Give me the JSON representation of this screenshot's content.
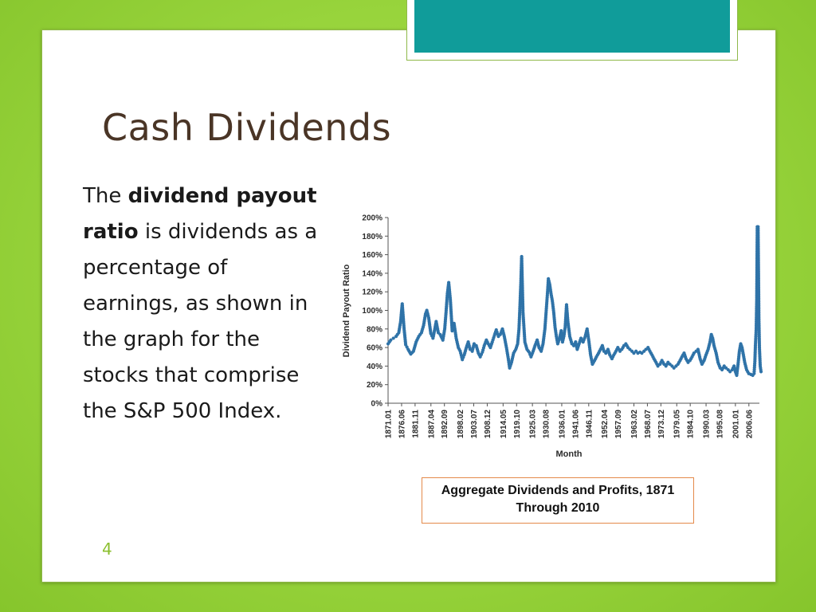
{
  "slide": {
    "title": "Cash Dividends",
    "body_pre": "The ",
    "body_bold": "dividend payout ratio",
    "body_post": " is dividends as a percentage of earnings, as shown in the graph for the stocks that comprise the S&P 500 Index.",
    "caption": "Aggregate Dividends and Profits, 1871 Through 2010",
    "page_number": "4"
  },
  "colors": {
    "accent_teal": "#109c9a",
    "background_green": "#98d43c",
    "series_blue": "#2f73a8",
    "title_brown": "#4a3526"
  },
  "chart_data": {
    "type": "scatter",
    "xlabel": "Month",
    "ylabel": "Dividend Payout Ratio",
    "ylim": [
      0,
      200
    ],
    "x_range": [
      1871,
      2010
    ],
    "y_ticks": [
      "0%",
      "20%",
      "40%",
      "60%",
      "80%",
      "100%",
      "120%",
      "140%",
      "160%",
      "180%",
      "200%"
    ],
    "x_tick_labels": [
      "1871.01",
      "1876.06",
      "1881.11",
      "1887.04",
      "1892.09",
      "1898.02",
      "1903.07",
      "1908.12",
      "1914.05",
      "1919.10",
      "1925.03",
      "1930.08",
      "1936.01",
      "1941.06",
      "1946.11",
      "1952.04",
      "1957.09",
      "1963.02",
      "1968.07",
      "1973.12",
      "1979.05",
      "1984.10",
      "1990.03",
      "1995.08",
      "2001.01",
      "2006.06"
    ],
    "series": [
      {
        "points": [
          [
            1871.0,
            64
          ],
          [
            1872.0,
            68
          ],
          [
            1873.0,
            70
          ],
          [
            1874.0,
            72
          ],
          [
            1875.0,
            76
          ],
          [
            1875.7,
            88
          ],
          [
            1876.3,
            107
          ],
          [
            1877.0,
            80
          ],
          [
            1877.6,
            63
          ],
          [
            1878.5,
            58
          ],
          [
            1879.5,
            53
          ],
          [
            1880.5,
            56
          ],
          [
            1881.5,
            66
          ],
          [
            1882.5,
            72
          ],
          [
            1883.5,
            76
          ],
          [
            1884.3,
            84
          ],
          [
            1885.0,
            96
          ],
          [
            1885.5,
            100
          ],
          [
            1886.2,
            92
          ],
          [
            1887.0,
            75
          ],
          [
            1887.8,
            70
          ],
          [
            1888.5,
            80
          ],
          [
            1889.0,
            88
          ],
          [
            1889.8,
            76
          ],
          [
            1890.5,
            74
          ],
          [
            1891.5,
            68
          ],
          [
            1892.2,
            80
          ],
          [
            1892.7,
            98
          ],
          [
            1893.2,
            118
          ],
          [
            1893.7,
            130
          ],
          [
            1894.3,
            112
          ],
          [
            1895.0,
            78
          ],
          [
            1895.7,
            86
          ],
          [
            1896.5,
            70
          ],
          [
            1897.3,
            60
          ],
          [
            1898.0,
            56
          ],
          [
            1898.8,
            47
          ],
          [
            1899.5,
            52
          ],
          [
            1900.3,
            60
          ],
          [
            1901.0,
            66
          ],
          [
            1901.7,
            58
          ],
          [
            1902.5,
            56
          ],
          [
            1903.2,
            64
          ],
          [
            1904.0,
            62
          ],
          [
            1904.8,
            54
          ],
          [
            1905.5,
            50
          ],
          [
            1906.3,
            55
          ],
          [
            1907.0,
            62
          ],
          [
            1907.8,
            68
          ],
          [
            1908.5,
            64
          ],
          [
            1909.3,
            60
          ],
          [
            1910.0,
            66
          ],
          [
            1910.8,
            73
          ],
          [
            1911.5,
            79
          ],
          [
            1912.3,
            72
          ],
          [
            1913.0,
            74
          ],
          [
            1913.8,
            80
          ],
          [
            1914.5,
            72
          ],
          [
            1915.3,
            60
          ],
          [
            1916.0,
            48
          ],
          [
            1916.5,
            38
          ],
          [
            1917.2,
            44
          ],
          [
            1918.0,
            54
          ],
          [
            1918.8,
            58
          ],
          [
            1919.5,
            64
          ],
          [
            1920.0,
            80
          ],
          [
            1920.3,
            100
          ],
          [
            1920.7,
            130
          ],
          [
            1921.0,
            158
          ],
          [
            1921.5,
            98
          ],
          [
            1922.2,
            66
          ],
          [
            1923.0,
            58
          ],
          [
            1923.8,
            55
          ],
          [
            1924.5,
            50
          ],
          [
            1925.3,
            56
          ],
          [
            1926.0,
            62
          ],
          [
            1926.8,
            68
          ],
          [
            1927.5,
            60
          ],
          [
            1928.3,
            56
          ],
          [
            1929.0,
            64
          ],
          [
            1929.7,
            80
          ],
          [
            1930.2,
            100
          ],
          [
            1930.7,
            120
          ],
          [
            1931.0,
            134
          ],
          [
            1931.5,
            128
          ],
          [
            1932.0,
            118
          ],
          [
            1932.5,
            110
          ],
          [
            1933.0,
            98
          ],
          [
            1933.5,
            82
          ],
          [
            1934.0,
            72
          ],
          [
            1934.5,
            64
          ],
          [
            1935.2,
            70
          ],
          [
            1935.8,
            78
          ],
          [
            1936.3,
            66
          ],
          [
            1936.8,
            72
          ],
          [
            1937.3,
            82
          ],
          [
            1937.8,
            106
          ],
          [
            1938.3,
            88
          ],
          [
            1939.0,
            72
          ],
          [
            1939.8,
            64
          ],
          [
            1940.5,
            62
          ],
          [
            1941.2,
            66
          ],
          [
            1941.8,
            58
          ],
          [
            1942.5,
            64
          ],
          [
            1943.2,
            70
          ],
          [
            1944.0,
            66
          ],
          [
            1944.8,
            72
          ],
          [
            1945.5,
            80
          ],
          [
            1946.2,
            66
          ],
          [
            1946.8,
            52
          ],
          [
            1947.5,
            42
          ],
          [
            1948.3,
            46
          ],
          [
            1949.0,
            50
          ],
          [
            1949.8,
            54
          ],
          [
            1950.5,
            58
          ],
          [
            1951.2,
            62
          ],
          [
            1951.8,
            56
          ],
          [
            1952.5,
            54
          ],
          [
            1953.3,
            58
          ],
          [
            1954.0,
            52
          ],
          [
            1954.8,
            48
          ],
          [
            1955.5,
            52
          ],
          [
            1956.3,
            56
          ],
          [
            1957.0,
            60
          ],
          [
            1957.8,
            56
          ],
          [
            1958.5,
            58
          ],
          [
            1959.3,
            62
          ],
          [
            1960.0,
            64
          ],
          [
            1960.8,
            60
          ],
          [
            1961.5,
            58
          ],
          [
            1962.3,
            56
          ],
          [
            1963.0,
            54
          ],
          [
            1963.8,
            56
          ],
          [
            1964.5,
            54
          ],
          [
            1965.3,
            55
          ],
          [
            1966.0,
            54
          ],
          [
            1966.8,
            56
          ],
          [
            1967.5,
            58
          ],
          [
            1968.3,
            60
          ],
          [
            1969.0,
            56
          ],
          [
            1969.8,
            52
          ],
          [
            1970.5,
            48
          ],
          [
            1971.3,
            44
          ],
          [
            1972.0,
            40
          ],
          [
            1972.8,
            42
          ],
          [
            1973.5,
            46
          ],
          [
            1974.3,
            42
          ],
          [
            1975.0,
            40
          ],
          [
            1975.8,
            44
          ],
          [
            1976.5,
            42
          ],
          [
            1977.3,
            40
          ],
          [
            1978.0,
            38
          ],
          [
            1978.8,
            40
          ],
          [
            1979.5,
            42
          ],
          [
            1980.3,
            46
          ],
          [
            1981.0,
            50
          ],
          [
            1981.8,
            54
          ],
          [
            1982.5,
            48
          ],
          [
            1983.3,
            44
          ],
          [
            1984.0,
            46
          ],
          [
            1984.8,
            50
          ],
          [
            1985.5,
            54
          ],
          [
            1986.3,
            56
          ],
          [
            1987.0,
            58
          ],
          [
            1987.8,
            48
          ],
          [
            1988.5,
            42
          ],
          [
            1989.3,
            46
          ],
          [
            1990.0,
            52
          ],
          [
            1990.8,
            58
          ],
          [
            1991.5,
            66
          ],
          [
            1992.0,
            74
          ],
          [
            1992.5,
            70
          ],
          [
            1993.0,
            62
          ],
          [
            1993.8,
            54
          ],
          [
            1994.5,
            44
          ],
          [
            1995.3,
            38
          ],
          [
            1996.0,
            36
          ],
          [
            1996.8,
            40
          ],
          [
            1997.5,
            38
          ],
          [
            1998.3,
            36
          ],
          [
            1999.0,
            34
          ],
          [
            1999.8,
            36
          ],
          [
            2000.5,
            40
          ],
          [
            2001.0,
            34
          ],
          [
            2001.5,
            30
          ],
          [
            2002.0,
            42
          ],
          [
            2002.5,
            56
          ],
          [
            2003.0,
            64
          ],
          [
            2003.5,
            60
          ],
          [
            2004.0,
            52
          ],
          [
            2004.5,
            44
          ],
          [
            2005.2,
            36
          ],
          [
            2006.0,
            32
          ],
          [
            2006.8,
            31
          ],
          [
            2007.5,
            30
          ],
          [
            2008.0,
            32
          ],
          [
            2008.3,
            45
          ],
          [
            2008.5,
            62
          ],
          [
            2008.8,
            80
          ],
          [
            2009.0,
            112
          ],
          [
            2009.2,
            190
          ],
          [
            2009.5,
            190
          ],
          [
            2009.8,
            92
          ],
          [
            2010.0,
            60
          ],
          [
            2010.3,
            40
          ],
          [
            2010.6,
            34
          ]
        ]
      }
    ]
  }
}
